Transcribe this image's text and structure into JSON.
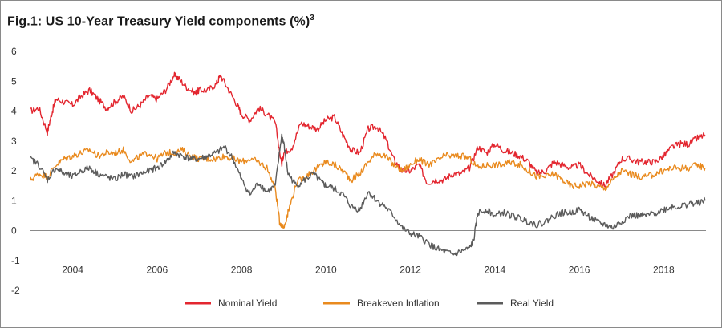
{
  "title": "Fig.1: US 10-Year Treasury Yield components (%)",
  "title_sup": "3",
  "chart_data": {
    "type": "line",
    "title": "Fig.1: US 10-Year Treasury Yield components (%)",
    "xlabel": "",
    "ylabel": "",
    "xlim": [
      2003.0,
      2019.0
    ],
    "ylim": [
      -2,
      6
    ],
    "x_ticks": [
      2004,
      2006,
      2008,
      2010,
      2012,
      2014,
      2016,
      2018
    ],
    "y_ticks": [
      -2,
      -1,
      0,
      1,
      2,
      3,
      4,
      5,
      6
    ],
    "grid": "horizontal at 0 only",
    "legend": "bottom-center",
    "series": [
      {
        "name": "Nominal Yield",
        "color": "#e3262f",
        "x": [
          2003.0,
          2003.2,
          2003.4,
          2003.5,
          2003.6,
          2003.8,
          2004.0,
          2004.2,
          2004.4,
          2004.6,
          2004.8,
          2005.0,
          2005.2,
          2005.4,
          2005.6,
          2005.8,
          2006.0,
          2006.2,
          2006.4,
          2006.5,
          2006.7,
          2006.9,
          2007.0,
          2007.2,
          2007.4,
          2007.5,
          2007.7,
          2007.9,
          2008.0,
          2008.2,
          2008.4,
          2008.6,
          2008.8,
          2008.95,
          2009.0,
          2009.2,
          2009.4,
          2009.6,
          2009.8,
          2010.0,
          2010.2,
          2010.4,
          2010.6,
          2010.8,
          2011.0,
          2011.2,
          2011.4,
          2011.6,
          2011.8,
          2012.0,
          2012.2,
          2012.4,
          2012.6,
          2012.8,
          2013.0,
          2013.2,
          2013.4,
          2013.6,
          2013.8,
          2014.0,
          2014.2,
          2014.4,
          2014.6,
          2014.8,
          2015.0,
          2015.2,
          2015.4,
          2015.6,
          2015.8,
          2016.0,
          2016.2,
          2016.4,
          2016.6,
          2016.8,
          2017.0,
          2017.2,
          2017.4,
          2017.6,
          2017.8,
          2018.0,
          2018.2,
          2018.4,
          2018.6,
          2018.8,
          2018.98
        ],
        "y": [
          4.0,
          4.1,
          3.3,
          3.9,
          4.4,
          4.3,
          4.2,
          4.5,
          4.7,
          4.4,
          4.1,
          4.3,
          4.5,
          4.0,
          4.2,
          4.5,
          4.4,
          4.7,
          5.2,
          5.1,
          4.8,
          4.6,
          4.7,
          4.7,
          4.9,
          5.2,
          4.7,
          4.2,
          3.9,
          3.7,
          4.1,
          3.9,
          3.6,
          2.2,
          2.6,
          2.8,
          3.6,
          3.5,
          3.4,
          3.7,
          3.8,
          3.2,
          2.7,
          2.6,
          3.4,
          3.5,
          3.1,
          2.4,
          2.0,
          2.0,
          2.2,
          1.6,
          1.7,
          1.7,
          1.9,
          1.9,
          2.1,
          2.8,
          2.6,
          2.9,
          2.7,
          2.6,
          2.5,
          2.3,
          1.9,
          2.0,
          2.3,
          2.2,
          2.1,
          2.2,
          1.9,
          1.7,
          1.5,
          1.9,
          2.4,
          2.4,
          2.3,
          2.3,
          2.3,
          2.5,
          2.8,
          2.9,
          2.9,
          3.1,
          3.2
        ]
      },
      {
        "name": "Breakeven Inflation",
        "color": "#e98a1e",
        "x": [
          2003.0,
          2003.2,
          2003.4,
          2003.6,
          2003.8,
          2004.0,
          2004.2,
          2004.4,
          2004.6,
          2004.8,
          2005.0,
          2005.2,
          2005.4,
          2005.6,
          2005.8,
          2006.0,
          2006.2,
          2006.4,
          2006.6,
          2006.8,
          2007.0,
          2007.2,
          2007.4,
          2007.6,
          2007.8,
          2008.0,
          2008.2,
          2008.4,
          2008.6,
          2008.8,
          2008.9,
          2009.0,
          2009.1,
          2009.3,
          2009.5,
          2009.7,
          2009.9,
          2010.0,
          2010.2,
          2010.4,
          2010.6,
          2010.8,
          2011.0,
          2011.2,
          2011.4,
          2011.6,
          2011.8,
          2012.0,
          2012.2,
          2012.4,
          2012.6,
          2012.8,
          2013.0,
          2013.2,
          2013.4,
          2013.6,
          2013.8,
          2014.0,
          2014.2,
          2014.4,
          2014.6,
          2014.8,
          2015.0,
          2015.2,
          2015.4,
          2015.6,
          2015.8,
          2016.0,
          2016.2,
          2016.4,
          2016.6,
          2016.8,
          2017.0,
          2017.2,
          2017.4,
          2017.6,
          2017.8,
          2018.0,
          2018.2,
          2018.4,
          2018.6,
          2018.8,
          2018.98
        ],
        "y": [
          1.7,
          1.9,
          1.8,
          2.2,
          2.4,
          2.5,
          2.6,
          2.7,
          2.5,
          2.6,
          2.6,
          2.7,
          2.3,
          2.5,
          2.6,
          2.4,
          2.6,
          2.6,
          2.7,
          2.5,
          2.4,
          2.4,
          2.4,
          2.5,
          2.4,
          2.3,
          2.4,
          2.3,
          2.1,
          1.4,
          0.3,
          0.1,
          0.6,
          1.6,
          1.8,
          2.0,
          2.2,
          2.3,
          2.2,
          2.0,
          1.7,
          1.9,
          2.3,
          2.6,
          2.5,
          2.2,
          2.0,
          2.2,
          2.4,
          2.2,
          2.3,
          2.5,
          2.5,
          2.5,
          2.4,
          2.1,
          2.2,
          2.2,
          2.2,
          2.3,
          2.2,
          2.0,
          1.8,
          1.8,
          1.9,
          1.7,
          1.5,
          1.5,
          1.6,
          1.5,
          1.4,
          1.7,
          2.0,
          1.9,
          1.8,
          1.8,
          1.9,
          2.0,
          2.1,
          2.1,
          2.1,
          2.2,
          2.1
        ]
      },
      {
        "name": "Real Yield",
        "color": "#5b5b5b",
        "x": [
          2003.0,
          2003.2,
          2003.4,
          2003.6,
          2003.8,
          2004.0,
          2004.2,
          2004.4,
          2004.6,
          2004.8,
          2005.0,
          2005.2,
          2005.4,
          2005.6,
          2005.8,
          2006.0,
          2006.2,
          2006.4,
          2006.6,
          2006.8,
          2007.0,
          2007.2,
          2007.4,
          2007.6,
          2007.8,
          2008.0,
          2008.2,
          2008.4,
          2008.6,
          2008.8,
          2008.95,
          2009.0,
          2009.1,
          2009.3,
          2009.5,
          2009.7,
          2009.9,
          2010.0,
          2010.2,
          2010.4,
          2010.6,
          2010.8,
          2011.0,
          2011.2,
          2011.4,
          2011.6,
          2011.8,
          2012.0,
          2012.2,
          2012.4,
          2012.6,
          2012.8,
          2013.0,
          2013.2,
          2013.4,
          2013.5,
          2013.6,
          2013.8,
          2014.0,
          2014.2,
          2014.4,
          2014.6,
          2014.8,
          2015.0,
          2015.2,
          2015.4,
          2015.6,
          2015.8,
          2016.0,
          2016.2,
          2016.4,
          2016.6,
          2016.8,
          2017.0,
          2017.2,
          2017.4,
          2017.6,
          2017.8,
          2018.0,
          2018.2,
          2018.4,
          2018.6,
          2018.8,
          2018.98
        ],
        "y": [
          2.4,
          2.2,
          1.7,
          2.1,
          1.9,
          1.8,
          2.0,
          2.1,
          1.9,
          1.8,
          1.7,
          1.9,
          1.8,
          1.9,
          2.0,
          2.1,
          2.3,
          2.6,
          2.5,
          2.4,
          2.4,
          2.5,
          2.6,
          2.8,
          2.4,
          1.7,
          1.2,
          1.6,
          1.3,
          1.5,
          3.2,
          2.9,
          1.9,
          1.5,
          1.7,
          1.9,
          1.6,
          1.5,
          1.4,
          1.2,
          0.8,
          0.7,
          1.3,
          1.0,
          0.8,
          0.5,
          0.1,
          -0.1,
          -0.2,
          -0.4,
          -0.6,
          -0.7,
          -0.8,
          -0.7,
          -0.6,
          -0.3,
          0.6,
          0.7,
          0.5,
          0.6,
          0.5,
          0.4,
          0.3,
          0.2,
          0.3,
          0.5,
          0.6,
          0.6,
          0.7,
          0.5,
          0.3,
          0.2,
          0.1,
          0.3,
          0.5,
          0.5,
          0.5,
          0.6,
          0.7,
          0.8,
          0.8,
          0.9,
          0.9,
          1.0
        ]
      }
    ]
  }
}
